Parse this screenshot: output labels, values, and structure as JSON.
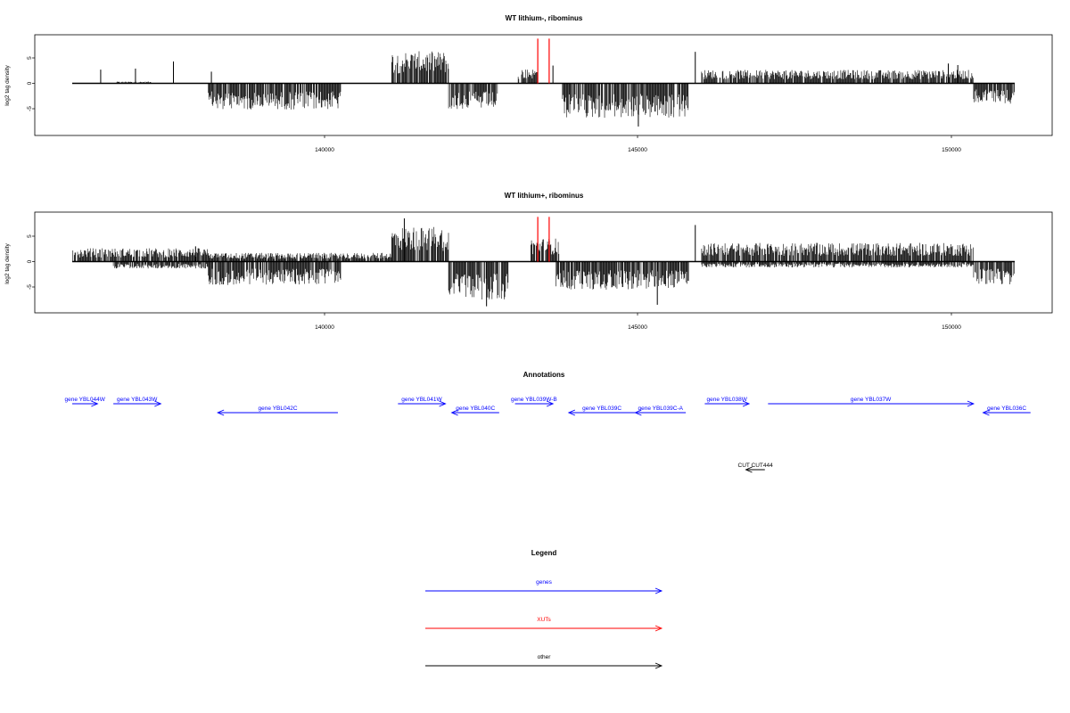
{
  "chart_data": [
    {
      "type": "bar",
      "title": "WT lithium-, ribominus",
      "ylabel": "log2 tag density",
      "xlim": [
        136000,
        151200
      ],
      "ylim": [
        -10,
        10
      ],
      "x_ticks": [
        140000,
        145000,
        150000
      ],
      "y_ticks": [
        -5,
        0,
        5
      ],
      "segments": [
        {
          "x0": 136750,
          "x1": 137300,
          "sign": 1,
          "amp": 0.3
        },
        {
          "x0": 138200,
          "x1": 140300,
          "sign": -1,
          "amp": 4.5
        },
        {
          "x0": 141100,
          "x1": 142000,
          "sign": 1,
          "amp": 5.5
        },
        {
          "x0": 142000,
          "x1": 142800,
          "sign": -1,
          "amp": 4.5
        },
        {
          "x0": 143100,
          "x1": 143400,
          "sign": 1,
          "amp": 2.5
        },
        {
          "x0": 143800,
          "x1": 145800,
          "sign": -1,
          "amp": 6.0
        },
        {
          "x0": 146000,
          "x1": 150300,
          "sign": 1,
          "amp": 2.3
        },
        {
          "x0": 150300,
          "x1": 150950,
          "sign": -1,
          "amp": 3.5
        }
      ],
      "spikes": [
        {
          "x": 136500,
          "y": 2.7
        },
        {
          "x": 137050,
          "y": 2.9
        },
        {
          "x": 137650,
          "y": 4.3
        },
        {
          "x": 138250,
          "y": 2.3
        },
        {
          "x": 145900,
          "y": 6.2
        },
        {
          "x": 145000,
          "y": -8.5
        },
        {
          "x": 143650,
          "y": 3.5
        },
        {
          "x": 149900,
          "y": 3.9
        },
        {
          "x": 150050,
          "y": 3.6
        }
      ],
      "xut_lines": [
        {
          "x": 143410,
          "y": 8.8
        },
        {
          "x": 143590,
          "y": 8.8
        }
      ]
    },
    {
      "type": "bar",
      "title": "WT lithium+, ribominus",
      "ylabel": "log2 tag density",
      "xlim": [
        136000,
        151200
      ],
      "ylim": [
        -10,
        10
      ],
      "x_ticks": [
        140000,
        145000,
        150000
      ],
      "y_ticks": [
        -5,
        0,
        5
      ],
      "segments": [
        {
          "x0": 136050,
          "x1": 138200,
          "sign": 1,
          "amp": 2.3
        },
        {
          "x0": 136700,
          "x1": 138200,
          "sign": -1,
          "amp": 1.2
        },
        {
          "x0": 138200,
          "x1": 140300,
          "sign": -1,
          "amp": 4.0
        },
        {
          "x0": 138200,
          "x1": 141100,
          "sign": 1,
          "amp": 1.5
        },
        {
          "x0": 141100,
          "x1": 142000,
          "sign": 1,
          "amp": 6.0
        },
        {
          "x0": 142000,
          "x1": 142950,
          "sign": -1,
          "amp": 6.5
        },
        {
          "x0": 143300,
          "x1": 143750,
          "sign": 1,
          "amp": 4.0
        },
        {
          "x0": 143700,
          "x1": 145800,
          "sign": -1,
          "amp": 4.8
        },
        {
          "x0": 146000,
          "x1": 150300,
          "sign": 1,
          "amp": 3.2
        },
        {
          "x0": 146000,
          "x1": 150300,
          "sign": -1,
          "amp": 1.0
        },
        {
          "x0": 150300,
          "x1": 150950,
          "sign": -1,
          "amp": 4.0
        }
      ],
      "spikes": [
        {
          "x": 145900,
          "y": 7.2
        },
        {
          "x": 141300,
          "y": 8.5
        },
        {
          "x": 142600,
          "y": -8.8
        },
        {
          "x": 145300,
          "y": -8.5
        },
        {
          "x": 138000,
          "y": 3.0
        }
      ],
      "xut_lines": [
        {
          "x": 143410,
          "y": 8.8
        },
        {
          "x": 143590,
          "y": 8.8
        }
      ]
    }
  ],
  "plots": [
    {
      "title": "WT lithium-, ribominus",
      "ylabel": "log2 tag density",
      "ytick_labels": [
        "5",
        "0",
        "-5"
      ],
      "xtick_labels": [
        "140000",
        "145000",
        "150000"
      ]
    },
    {
      "title": "WT lithium+, ribominus",
      "ylabel": "log2 tag density",
      "ytick_labels": [
        "5",
        "0",
        "-5"
      ],
      "xtick_labels": [
        "140000",
        "145000",
        "150000"
      ]
    }
  ],
  "annotations": {
    "title": "Annotations",
    "genes_color": "#0000ff",
    "other_color": "#000000",
    "genes": [
      {
        "label": "gene YBL044W",
        "x0": 136050,
        "x1": 136450,
        "dir": "right",
        "row": 0
      },
      {
        "label": "gene YBL043W",
        "x0": 136700,
        "x1": 137450,
        "dir": "right",
        "row": 0
      },
      {
        "label": "gene YBL042C",
        "x0": 138350,
        "x1": 140250,
        "dir": "left",
        "row": 1
      },
      {
        "label": "gene YBL041W",
        "x0": 141200,
        "x1": 141950,
        "dir": "right",
        "row": 0
      },
      {
        "label": "gene YBL040C",
        "x0": 142050,
        "x1": 142800,
        "dir": "left",
        "row": 1
      },
      {
        "label": "gene YBL039W-B",
        "x0": 143050,
        "x1": 143650,
        "dir": "right",
        "row": 0
      },
      {
        "label": "gene YBL039C",
        "x0": 143900,
        "x1": 144950,
        "dir": "left",
        "row": 1
      },
      {
        "label": "gene YBL039C-A",
        "x0": 144950,
        "x1": 145750,
        "dir": "left",
        "row": 1
      },
      {
        "label": "gene YBL038W",
        "x0": 146050,
        "x1": 146750,
        "dir": "right",
        "row": 0
      },
      {
        "label": "gene YBL037W",
        "x0": 147050,
        "x1": 150300,
        "dir": "right",
        "row": 0
      },
      {
        "label": "gene YBL036C",
        "x0": 150450,
        "x1": 151200,
        "dir": "left",
        "row": 1
      }
    ],
    "other": [
      {
        "label": "CUT CUT444",
        "x0": 146700,
        "x1": 147000,
        "dir": "left"
      }
    ]
  },
  "legend": {
    "title": "Legend",
    "items": [
      {
        "label": "genes",
        "color": "#0000ff"
      },
      {
        "label": "XUTs",
        "color": "#ff0000"
      },
      {
        "label": "other",
        "color": "#000000"
      }
    ]
  }
}
